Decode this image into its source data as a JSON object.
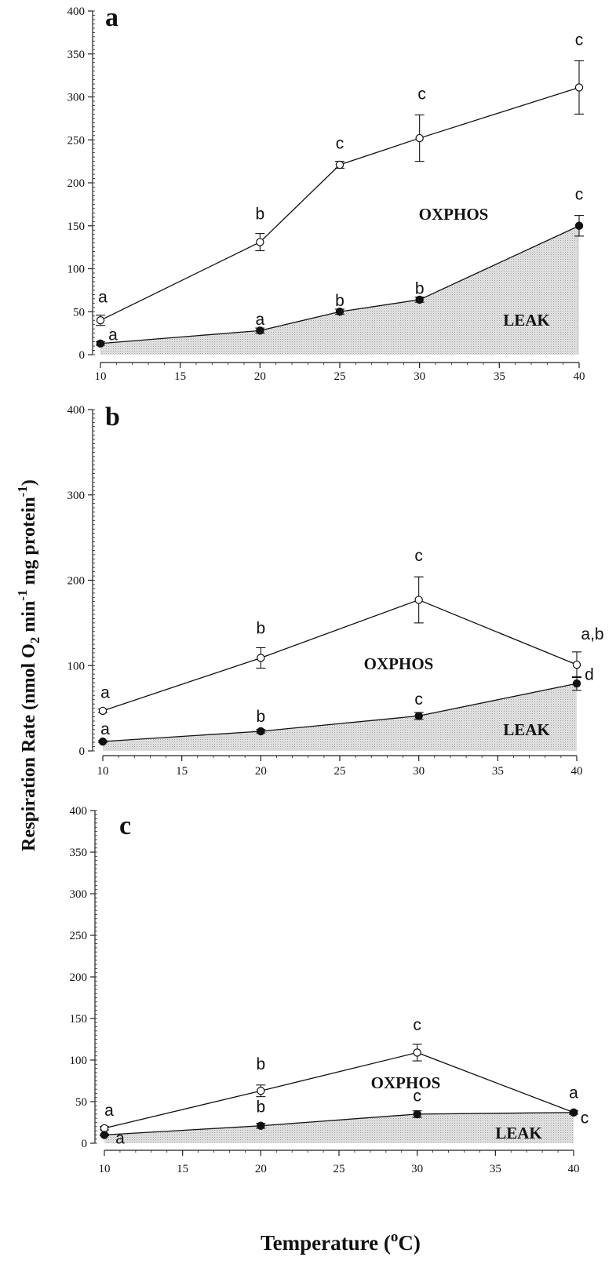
{
  "figure": {
    "ylabel_main": "Respiration Rate (nmol O",
    "ylabel_sub": "2",
    "ylabel_mid": " min",
    "ylabel_sup1": "-1",
    "ylabel_tail": " mg protein",
    "ylabel_sup2": "-1",
    "ylabel_close": ")",
    "xlabel_main": "Temperature (",
    "xlabel_sup": "o",
    "xlabel_tail": "C)"
  },
  "chart_data": [
    {
      "type": "line",
      "panel": "a",
      "x": [
        10,
        20,
        25,
        30,
        40
      ],
      "xticks": [
        10,
        15,
        20,
        25,
        30,
        35,
        40
      ],
      "xlim": [
        10,
        40
      ],
      "ylim": [
        0,
        400
      ],
      "yticks": [
        0,
        50,
        100,
        150,
        200,
        250,
        300,
        350,
        400
      ],
      "region_labels": {
        "oxphos": "OXPHOS",
        "leak": "LEAK"
      },
      "series": [
        {
          "name": "OXPHOS",
          "marker": "open",
          "values": [
            40,
            131,
            221,
            252,
            311
          ],
          "errors": [
            6,
            10,
            4,
            27,
            31
          ],
          "letters": [
            "a",
            "b",
            "c",
            "c",
            "c"
          ]
        },
        {
          "name": "LEAK",
          "marker": "filled",
          "values": [
            13,
            28,
            50,
            64,
            150
          ],
          "errors": [
            2,
            3,
            3,
            3,
            12
          ],
          "letters": [
            "a",
            "a",
            "b",
            "b",
            "c"
          ]
        }
      ]
    },
    {
      "type": "line",
      "panel": "b",
      "x": [
        10,
        20,
        30,
        40
      ],
      "xticks": [
        10,
        15,
        20,
        25,
        30,
        35,
        40
      ],
      "xlim": [
        10,
        40
      ],
      "ylim": [
        0,
        400
      ],
      "yticks": [
        0,
        100,
        200,
        300,
        400
      ],
      "region_labels": {
        "oxphos": "OXPHOS",
        "leak": "LEAK"
      },
      "series": [
        {
          "name": "OXPHOS",
          "marker": "open",
          "values": [
            47,
            109,
            177,
            101
          ],
          "errors": [
            2,
            12,
            27,
            15
          ],
          "letters": [
            "a",
            "b",
            "c",
            "a,b"
          ]
        },
        {
          "name": "LEAK",
          "marker": "filled",
          "values": [
            11,
            23,
            41,
            79
          ],
          "errors": [
            1,
            2,
            4,
            8
          ],
          "letters": [
            "a",
            "b",
            "c",
            "d"
          ]
        }
      ]
    },
    {
      "type": "line",
      "panel": "c",
      "x": [
        10,
        20,
        30,
        40
      ],
      "xticks": [
        10,
        15,
        20,
        25,
        30,
        35,
        40
      ],
      "xlim": [
        10,
        40
      ],
      "ylim": [
        0,
        400
      ],
      "yticks": [
        0,
        50,
        100,
        150,
        200,
        250,
        300,
        350,
        400
      ],
      "region_labels": {
        "oxphos": "OXPHOS",
        "leak": "LEAK"
      },
      "series": [
        {
          "name": "OXPHOS",
          "marker": "open",
          "values": [
            18,
            63,
            109,
            37
          ],
          "errors": [
            2,
            7,
            10,
            2
          ],
          "letters": [
            "a",
            "b",
            "c",
            "a"
          ]
        },
        {
          "name": "LEAK",
          "marker": "filled",
          "values": [
            10,
            21,
            35,
            37
          ],
          "errors": [
            1,
            3,
            4,
            2
          ],
          "letters": [
            "a",
            "b",
            "c",
            "c"
          ]
        }
      ]
    }
  ]
}
